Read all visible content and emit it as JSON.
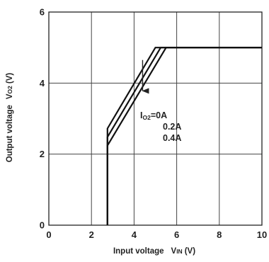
{
  "chart_data": {
    "type": "line",
    "xlabel": {
      "main": "Input voltage",
      "sym": "V",
      "sub": "IN",
      "unit": "(V)"
    },
    "ylabel": {
      "main": "Output voltage",
      "sym": "V",
      "sub": "O2",
      "unit": "(V)"
    },
    "xlim": [
      0,
      10
    ],
    "ylim": [
      0,
      6
    ],
    "x_ticks": [
      0,
      2,
      4,
      6,
      8,
      10
    ],
    "y_ticks": [
      0,
      2,
      4,
      6
    ],
    "grid": true,
    "series": [
      {
        "name": "0A",
        "points": [
          [
            2.75,
            0
          ],
          [
            2.75,
            2.72
          ],
          [
            5.0,
            5.0
          ],
          [
            10,
            5.0
          ]
        ]
      },
      {
        "name": "0.2A",
        "points": [
          [
            2.75,
            0
          ],
          [
            2.75,
            2.48
          ],
          [
            5.25,
            5.0
          ],
          [
            10,
            5.0
          ]
        ]
      },
      {
        "name": "0.4A",
        "points": [
          [
            2.75,
            0
          ],
          [
            2.75,
            2.24
          ],
          [
            5.5,
            5.0
          ],
          [
            10,
            5.0
          ]
        ]
      }
    ],
    "annotations": {
      "symbol": "I",
      "symbol_sub": "O2",
      "labels": [
        "=0A",
        "0.2A",
        "0.4A"
      ],
      "arrow": {
        "from": [
          4.4,
          4.65
        ],
        "to": [
          4.4,
          3.78
        ]
      }
    }
  }
}
